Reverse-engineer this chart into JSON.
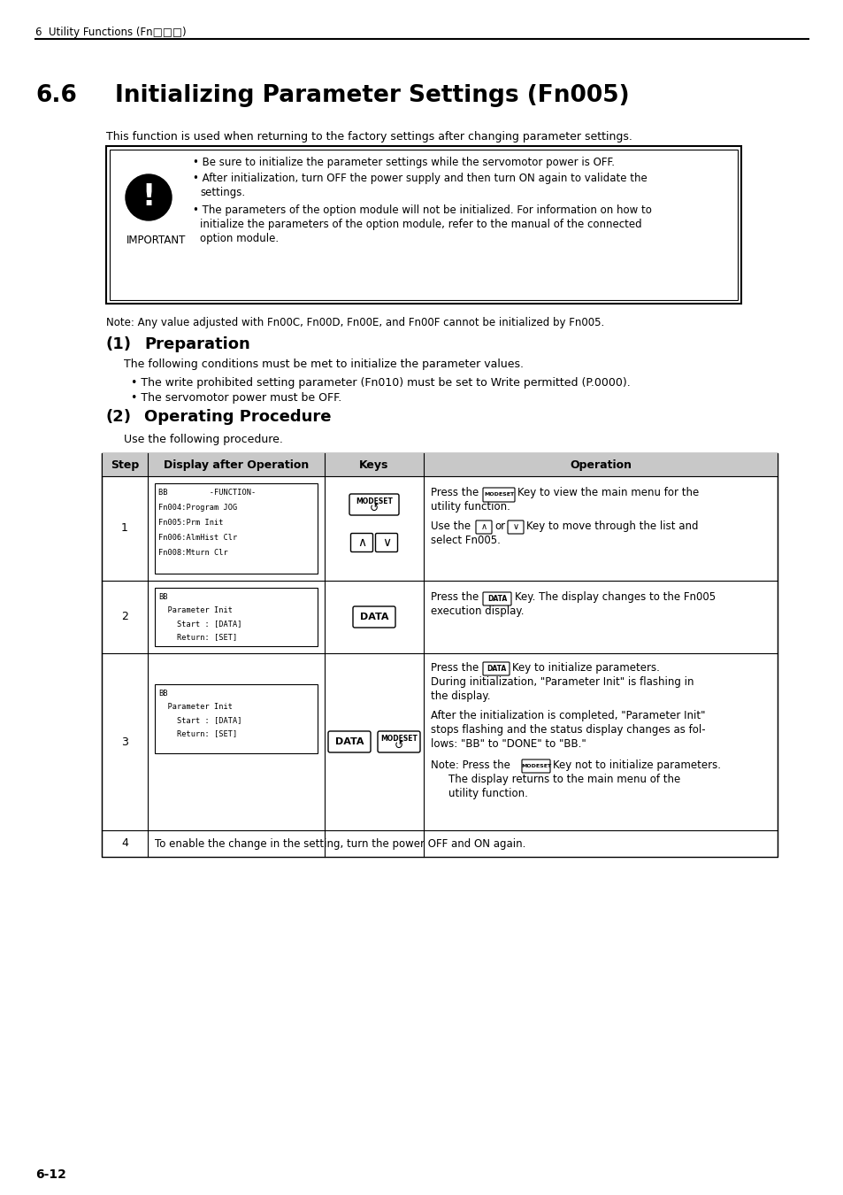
{
  "page_header": "6  Utility Functions (Fn□□□)",
  "section_number": "6.6",
  "section_title": "Initializing Parameter Settings (Fn005)",
  "intro_text": "This function is used when returning to the factory settings after changing parameter settings.",
  "imp_b1": "Be sure to initialize the parameter settings while the servomotor power is OFF.",
  "imp_b2a": "After initialization, turn OFF the power supply and then turn ON again to validate the",
  "imp_b2b": "settings.",
  "imp_b3a": "The parameters of the option module will not be initialized. For information on how to",
  "imp_b3b": "initialize the parameters of the option module, refer to the manual of the connected",
  "imp_b3c": "option module.",
  "note_text": "Note: Any value adjusted with Fn00C, Fn00D, Fn00E, and Fn00F cannot be initialized by Fn005.",
  "prep_intro": "The following conditions must be met to initialize the parameter values.",
  "prep_b1": "The write prohibited setting parameter (Fn010) must be set to Write permitted (P.0000).",
  "prep_b2": "The servomotor power must be OFF.",
  "proc_intro": "Use the following procedure.",
  "table_headers": [
    "Step",
    "Display after Operation",
    "Keys",
    "Operation"
  ],
  "step1_display": [
    "BB         -FUNCTION-",
    "Fn004:Program JOG",
    "Fn005:Prm Init",
    "Fn006:AlmHist Clr",
    "Fn008:Mturn Clr"
  ],
  "step1_op1a": "Press the",
  "step1_op1b": "Key to view the main menu for the",
  "step1_op1c": "utility function.",
  "step1_op2a": "Use the",
  "step1_op2b": "or",
  "step1_op2c": "Key to move through the list and",
  "step1_op2d": "select Fn005.",
  "step2_display": [
    "BB",
    "  Parameter Init",
    "    Start : [DATA]",
    "    Return: [SET]"
  ],
  "step2_op": "Press the        Key. The display changes to the Fn005\nexecution display.",
  "step3_display": [
    "BB",
    "  Parameter Init",
    "    Start : [DATA]",
    "    Return: [SET]"
  ],
  "step3_op1": "Press the        Key to initialize parameters.",
  "step3_op2": "During initialization, \"Parameter Init\" is flashing in",
  "step3_op2b": "the display.",
  "step3_op3": "After the initialization is completed, \"Parameter Init\"",
  "step3_op3b": "stops flashing and the status display changes as fol-",
  "step3_op3c": "lows: \"BB\" to \"DONE\" to \"BB.\"",
  "step3_note1": "Note: Press the        Key not to initialize parameters.",
  "step3_note2": "      The display returns to the main menu of the",
  "step3_note3": "      utility function.",
  "step4_op": "To enable the change in the setting, turn the power OFF and ON again.",
  "footer": "6-12",
  "bg_color": "#ffffff",
  "table_header_bg": "#c8c8c8"
}
